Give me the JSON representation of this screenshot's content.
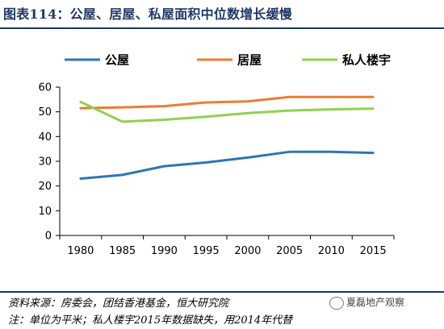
{
  "title": "图表114：公屋、居屋、私屋面积中位数增长缓慢",
  "source": "资料来源：房委会，团结香港基金，恒大研究院",
  "note": "注：单位为平米；私人楼宇2015年数据缺失，用2014年代替",
  "watermark": "夏磊地产观察",
  "chart_data": {
    "type": "line",
    "categories": [
      "1980",
      "1985",
      "1990",
      "1995",
      "2000",
      "2005",
      "2010",
      "2015"
    ],
    "ylim": [
      0,
      60
    ],
    "yticks": [
      0,
      10,
      20,
      30,
      40,
      50,
      60
    ],
    "grid": false,
    "legend_position": "top",
    "series": [
      {
        "name": "公屋",
        "color": "#2e75b6",
        "values": [
          23,
          24.5,
          28,
          29.5,
          31.5,
          33.8,
          33.8,
          33.4
        ]
      },
      {
        "name": "居屋",
        "color": "#ed7d31",
        "values": [
          51.5,
          51.8,
          52.3,
          53.8,
          54.2,
          56,
          56,
          56
        ]
      },
      {
        "name": "私人楼宇",
        "color": "#92d050",
        "values": [
          54,
          46,
          46.8,
          48,
          49.5,
          50.5,
          51,
          51.3
        ]
      }
    ]
  }
}
